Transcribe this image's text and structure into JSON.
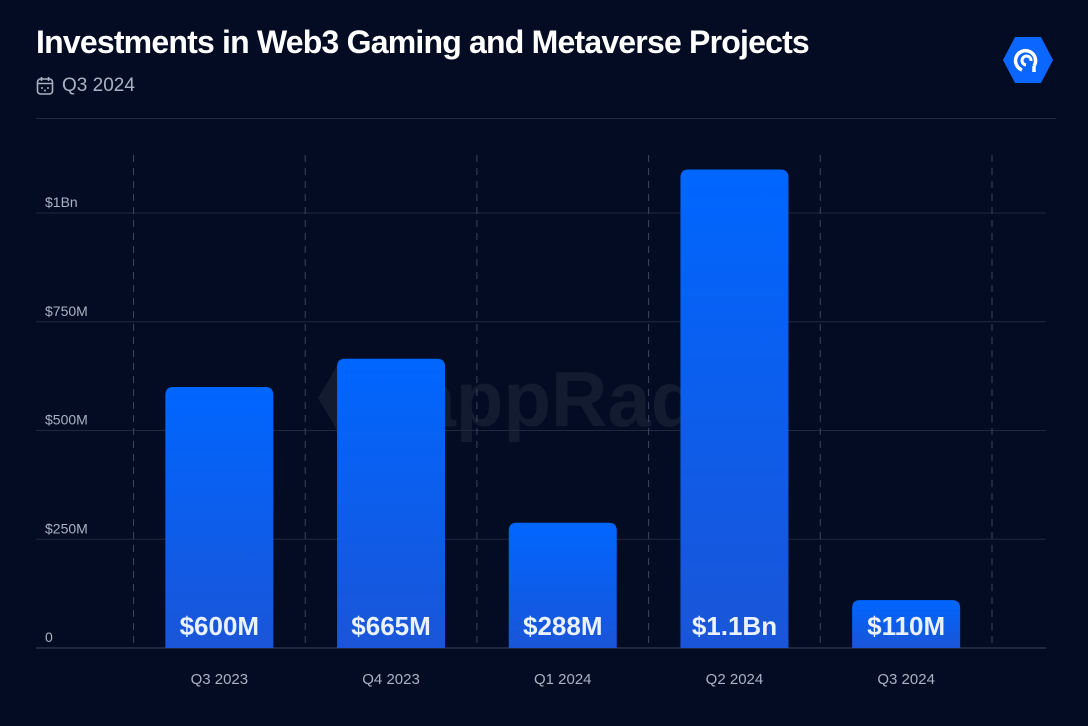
{
  "header": {
    "title": "Investments in Web3 Gaming and Metaverse Projects",
    "period": "Q3 2024",
    "calendar_icon": "calendar-icon",
    "logo": "dappradar-logo",
    "watermark": "DappRadar"
  },
  "colors": {
    "background": "#030c22",
    "bar_top": "#0066ff",
    "bar_bottom": "#1a55d8",
    "grid": "#1e2940"
  },
  "chart_data": {
    "type": "bar",
    "title": "Investments in Web3 Gaming and Metaverse Projects",
    "categories": [
      "Q3 2023",
      "Q4 2023",
      "Q1 2024",
      "Q2 2024",
      "Q3 2024"
    ],
    "values": [
      600,
      665,
      288,
      1100,
      110
    ],
    "unit": "USD millions",
    "data_labels": [
      "$600M",
      "$665M",
      "$288M",
      "$1.1Bn",
      "$110M"
    ],
    "yticks": [
      0,
      250,
      500,
      750,
      1000
    ],
    "ytick_labels": [
      "0",
      "$250M",
      "$500M",
      "$750M",
      "$1Bn"
    ],
    "ylim": [
      0,
      1100
    ],
    "grid": true
  }
}
